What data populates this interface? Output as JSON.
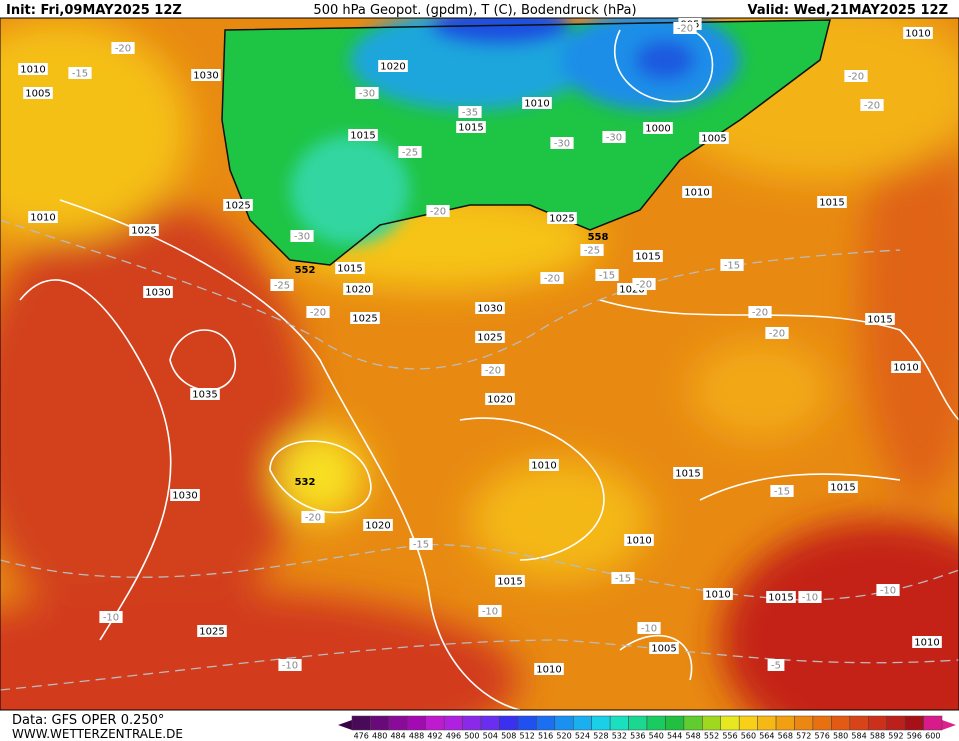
{
  "header": {
    "init": "Init: Fri,09MAY2025 12Z",
    "title": "500 hPa Geopot. (gpdm), T (C), Bodendruck (hPa)",
    "valid": "Valid: Wed,21MAY2025 12Z"
  },
  "footer": {
    "data": "Data: GFS OPER 0.250°",
    "site": "WWW.WETTERZENTRALE.DE"
  },
  "isobar_labels": [
    "1010",
    "1005",
    "1030",
    "1020",
    "1015",
    "1010",
    "1015",
    "1000",
    "1005",
    "995",
    "1010",
    "1010",
    "1025",
    "1025",
    "1025",
    "1010",
    "1015",
    "1015",
    "1015",
    "1020",
    "1025",
    "1030",
    "1020",
    "1030",
    "1025",
    "1035",
    "1020",
    "1015",
    "1010",
    "1010",
    "1015",
    "1015",
    "1030",
    "1020",
    "1010",
    "1015",
    "1010",
    "1015",
    "1025",
    "1005",
    "1010",
    "1010"
  ],
  "temperature_labels": [
    "-20",
    "-15",
    "-30",
    "-35",
    "-25",
    "-30",
    "-30",
    "-20",
    "-20",
    "-20",
    "-20",
    "-30",
    "-25",
    "-20",
    "-25",
    "-15",
    "-20",
    "-20",
    "-15",
    "-20",
    "-20",
    "-20",
    "-20",
    "-15",
    "-15",
    "-15",
    "-10",
    "-10",
    "-10",
    "-10",
    "-10",
    "-10",
    "-5"
  ],
  "geopotential_labels": [
    "552",
    "558",
    "532"
  ],
  "scale_labels": [
    476,
    480,
    484,
    488,
    492,
    496,
    500,
    504,
    508,
    512,
    516,
    520,
    524,
    528,
    532,
    536,
    540,
    544,
    548,
    552,
    556,
    560,
    564,
    568,
    572,
    576,
    580,
    584,
    588,
    592,
    596,
    600
  ]
}
